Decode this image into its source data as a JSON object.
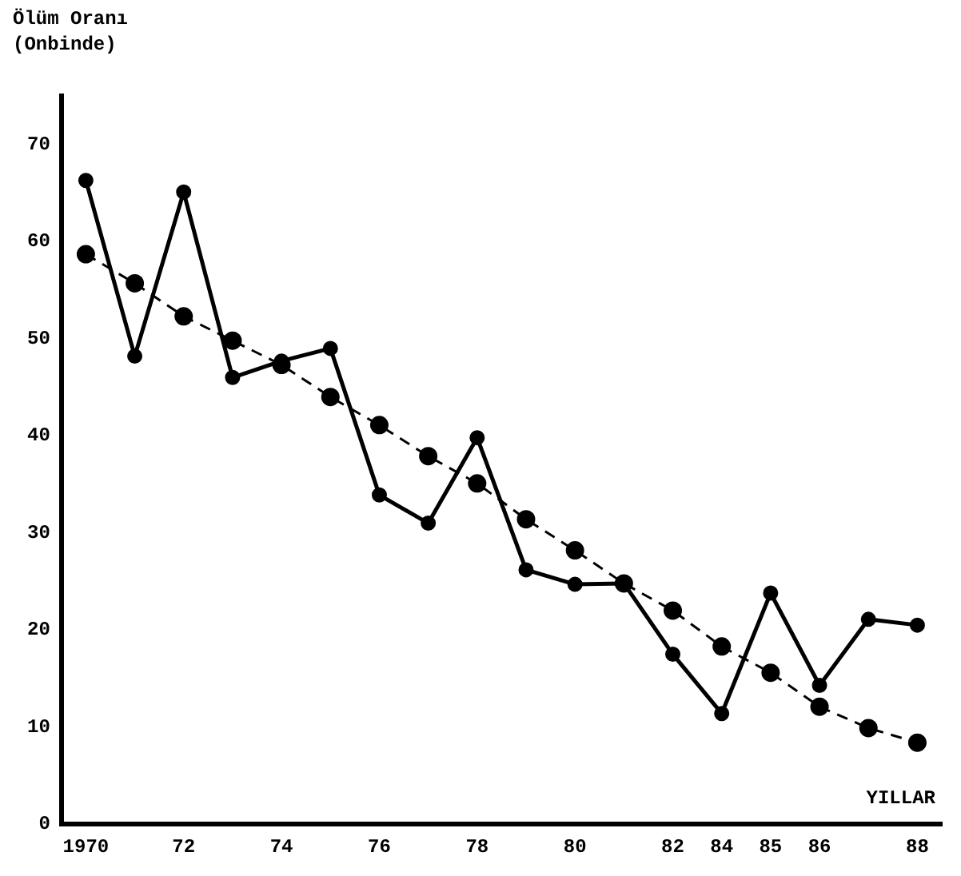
{
  "chart_data": {
    "type": "line",
    "ylabel": "Ölüm Oranı\n(Onbinde)",
    "xlabel": "YILLAR",
    "categories": [
      "1970",
      null,
      "72",
      null,
      "74",
      null,
      "76",
      null,
      "78",
      null,
      "80",
      null,
      "82",
      "84",
      "85",
      "86",
      null,
      "88"
    ],
    "series": [
      {
        "color": "#000000",
        "line_style": "solid",
        "values": [
          66.3,
          48.2,
          65.1,
          46,
          47.7,
          49,
          33.9,
          31,
          39.8,
          26.2,
          24.7,
          24.8,
          17.5,
          11.4,
          23.8,
          14.3,
          21.1,
          20.5
        ]
      },
      {
        "color": "#000000",
        "line_style": "dashed",
        "values": [
          58.7,
          55.7,
          52.3,
          49.8,
          47.3,
          44,
          41.1,
          37.9,
          35.1,
          31.4,
          28.2,
          24.8,
          22,
          18.3,
          15.6,
          12.1,
          9.9,
          8.4
        ]
      }
    ],
    "ylim": [
      0,
      75
    ],
    "yticks": [
      0,
      10,
      20,
      30,
      40,
      50,
      60,
      70
    ],
    "grid": false,
    "legend": false,
    "marker": "circle"
  }
}
